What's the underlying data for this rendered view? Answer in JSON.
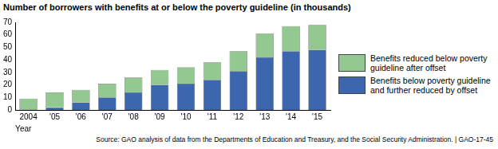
{
  "chart_data": {
    "type": "bar",
    "title": "Number of borrowers with benefits at or below the poverty guideline (in thousands)",
    "x_label": "Year",
    "source": "Source: GAO analysis of data from the Departments of Education and Treasury, and the Social Security Administration. | GAO-17-45",
    "categories": [
      "2004",
      "'05",
      "'06",
      "'07",
      "'08",
      "'09",
      "'10",
      "'11",
      "'12",
      "'13",
      "'14",
      "'15"
    ],
    "series": [
      {
        "name": "Benefits below poverty guideline and further reduced by offset",
        "color": "#3c66ae",
        "values": [
          0.5,
          2,
          6,
          10,
          14,
          20,
          21,
          24,
          31,
          42,
          47,
          48
        ]
      },
      {
        "name": "Benefits reduced below poverty guideline after offset",
        "color": "#93c890",
        "values": [
          8.5,
          12,
          10,
          11,
          12,
          12,
          13,
          14,
          16,
          19,
          20,
          20
        ]
      }
    ],
    "stacked": true,
    "ylim": [
      0,
      70
    ],
    "yticks": [
      0,
      10,
      20,
      30,
      40,
      50,
      60,
      70
    ],
    "grid": false,
    "legend": "right"
  }
}
